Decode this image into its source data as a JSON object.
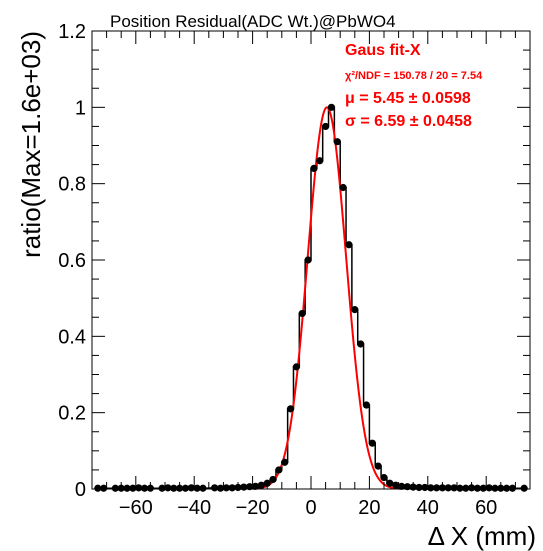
{
  "chart_data": {
    "type": "line",
    "title": "Position Residual(ADC Wt.)@PbWO4",
    "xlabel": "Δ X (mm)",
    "ylabel": "ratio(Max=1.6e+03)",
    "xlim": [
      -75,
      75
    ],
    "ylim": [
      0,
      1.2
    ],
    "xticks": [
      -60,
      -40,
      -20,
      0,
      20,
      40,
      60
    ],
    "yticks": [
      0,
      0.2,
      0.4,
      0.6,
      0.8,
      1,
      1.2
    ],
    "xtick_labels": [
      "−60",
      "−40",
      "−20",
      "0",
      "20",
      "40",
      "60"
    ],
    "ytick_labels": [
      "0",
      "0.2",
      "0.4",
      "0.6",
      "0.8",
      "1",
      "1.2"
    ],
    "grid": false,
    "series": [
      {
        "kind": "histogram-markers",
        "color": "#000000",
        "bin_width": 2,
        "x": [
          -73,
          -71,
          -67,
          -65,
          -63,
          -61,
          -59,
          -57,
          -55,
          -51,
          -49,
          -47,
          -45,
          -43,
          -41,
          -39,
          -37,
          -33,
          -31,
          -29,
          -27,
          -25,
          -23,
          -21,
          -19,
          -17,
          -15,
          -13,
          -11,
          -9,
          -7,
          -5,
          -3,
          -1,
          1,
          3,
          5,
          7,
          9,
          11,
          13,
          15,
          17,
          19,
          21,
          23,
          25,
          27,
          29,
          31,
          33,
          35,
          37,
          39,
          41,
          43,
          45,
          47,
          49,
          51,
          53,
          55,
          57,
          59,
          61,
          63,
          65,
          67,
          69,
          73
        ],
        "y": [
          0.002,
          0.002,
          0.002,
          0.002,
          0.002,
          0.002,
          0.003,
          0.002,
          0.002,
          0.002,
          0.003,
          0.002,
          0.002,
          0.002,
          0.003,
          0.002,
          0.002,
          0.003,
          0.002,
          0.003,
          0.003,
          0.004,
          0.005,
          0.006,
          0.007,
          0.01,
          0.015,
          0.025,
          0.05,
          0.07,
          0.21,
          0.32,
          0.46,
          0.6,
          0.84,
          0.86,
          0.95,
          1.0,
          0.91,
          0.79,
          0.64,
          0.47,
          0.38,
          0.22,
          0.12,
          0.06,
          0.03,
          0.015,
          0.01,
          0.007,
          0.006,
          0.005,
          0.004,
          0.004,
          0.003,
          0.003,
          0.003,
          0.003,
          0.003,
          0.002,
          0.002,
          0.003,
          0.002,
          0.002,
          0.003,
          0.002,
          0.002,
          0.002,
          0.002,
          0.002
        ]
      },
      {
        "kind": "gaussian-fit",
        "color": "#ff0000",
        "amplitude": 1.0,
        "mean": 5.45,
        "sigma": 6.59
      }
    ],
    "annotations": {
      "fit_title": "Gaus fit-X",
      "chi2": "χ²/NDF = 150.78 / 20 = 7.54",
      "mu": "μ = 5.45 ± 0.0598",
      "sigma": "σ = 6.59 ± 0.0458"
    }
  }
}
